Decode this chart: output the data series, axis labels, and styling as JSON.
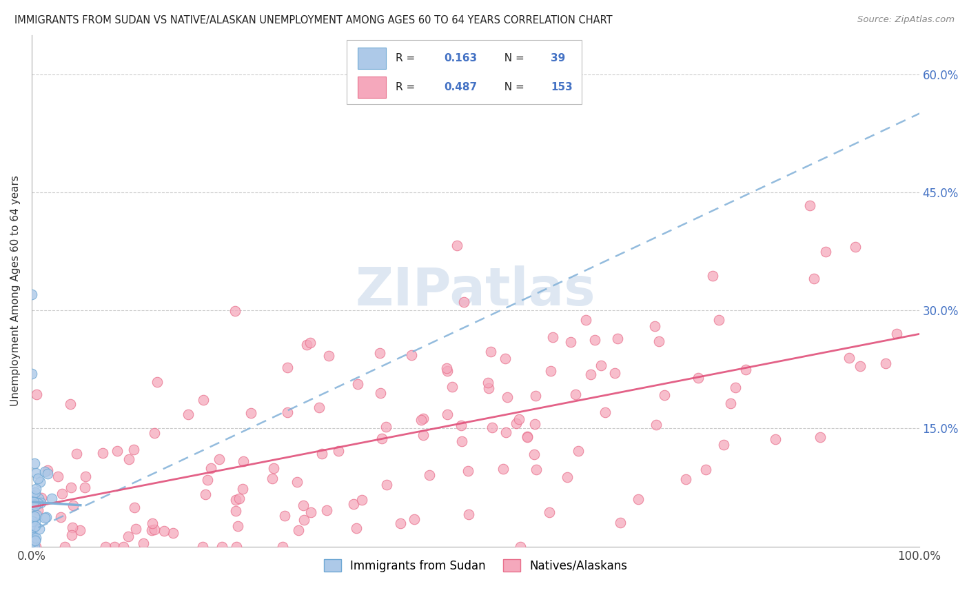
{
  "title": "IMMIGRANTS FROM SUDAN VS NATIVE/ALASKAN UNEMPLOYMENT AMONG AGES 60 TO 64 YEARS CORRELATION CHART",
  "source": "Source: ZipAtlas.com",
  "ylabel": "Unemployment Among Ages 60 to 64 years",
  "xlim": [
    0,
    1.0
  ],
  "ylim": [
    0,
    0.65
  ],
  "ytick_values": [
    0.0,
    0.15,
    0.3,
    0.45,
    0.6
  ],
  "ytick_labels": [
    "",
    "15.0%",
    "30.0%",
    "45.0%",
    "60.0%"
  ],
  "sudan_color": "#adc9e8",
  "sudan_edge_color": "#6fa8d4",
  "native_color": "#f5a8bc",
  "native_edge_color": "#e8708c",
  "trend_sudan_color": "#80b0d8",
  "trend_native_color": "#e0507a",
  "R_sudan": 0.163,
  "N_sudan": 39,
  "R_native": 0.487,
  "N_native": 153,
  "watermark": "ZIPatlas",
  "watermark_color": "#c8d8ea"
}
